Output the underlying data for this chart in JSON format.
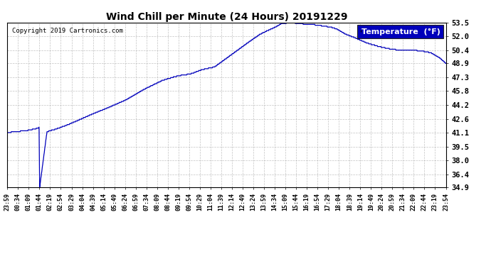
{
  "title": "Wind Chill per Minute (24 Hours) 20191229",
  "copyright": "Copyright 2019 Cartronics.com",
  "legend_label": "Temperature  (°F)",
  "yticks": [
    34.9,
    36.4,
    38.0,
    39.5,
    41.1,
    42.6,
    44.2,
    45.8,
    47.3,
    48.9,
    50.4,
    52.0,
    53.5
  ],
  "ymin": 34.9,
  "ymax": 53.5,
  "xtick_labels": [
    "23:59",
    "00:34",
    "01:09",
    "01:44",
    "02:19",
    "02:54",
    "03:29",
    "04:04",
    "04:39",
    "05:14",
    "05:49",
    "06:24",
    "06:59",
    "07:34",
    "08:09",
    "08:44",
    "09:19",
    "09:54",
    "10:29",
    "11:04",
    "11:39",
    "12:14",
    "12:49",
    "13:24",
    "13:59",
    "14:34",
    "15:09",
    "15:44",
    "16:19",
    "16:54",
    "17:29",
    "18:04",
    "18:39",
    "19:14",
    "19:49",
    "20:24",
    "20:59",
    "21:34",
    "22:09",
    "22:44",
    "23:19",
    "23:54"
  ],
  "line_color": "#0000bb",
  "background_color": "#ffffff",
  "grid_color": "#aaaaaa",
  "title_color": "#000000",
  "legend_bg": "#0000bb",
  "legend_text_color": "#ffffff",
  "waypoints_t": [
    0,
    25,
    60,
    102,
    104,
    106,
    130,
    160,
    200,
    240,
    280,
    330,
    390,
    450,
    510,
    560,
    600,
    640,
    680,
    720,
    760,
    800,
    830,
    860,
    880,
    900,
    930,
    960,
    980,
    1000,
    1020,
    1040,
    1060,
    1080,
    1110,
    1140,
    1180,
    1220,
    1260,
    1290,
    1310,
    1330,
    1360,
    1390,
    1420,
    1439
  ],
  "waypoints_v": [
    41.1,
    41.2,
    41.3,
    41.6,
    41.7,
    34.9,
    41.2,
    41.5,
    42.0,
    42.6,
    43.2,
    43.9,
    44.8,
    46.0,
    47.0,
    47.5,
    47.7,
    48.2,
    48.5,
    49.5,
    50.5,
    51.5,
    52.2,
    52.7,
    53.0,
    53.4,
    53.5,
    53.4,
    53.3,
    53.3,
    53.2,
    53.1,
    53.0,
    52.8,
    52.2,
    51.8,
    51.2,
    50.8,
    50.5,
    50.4,
    50.4,
    50.4,
    50.3,
    50.1,
    49.5,
    48.9
  ]
}
